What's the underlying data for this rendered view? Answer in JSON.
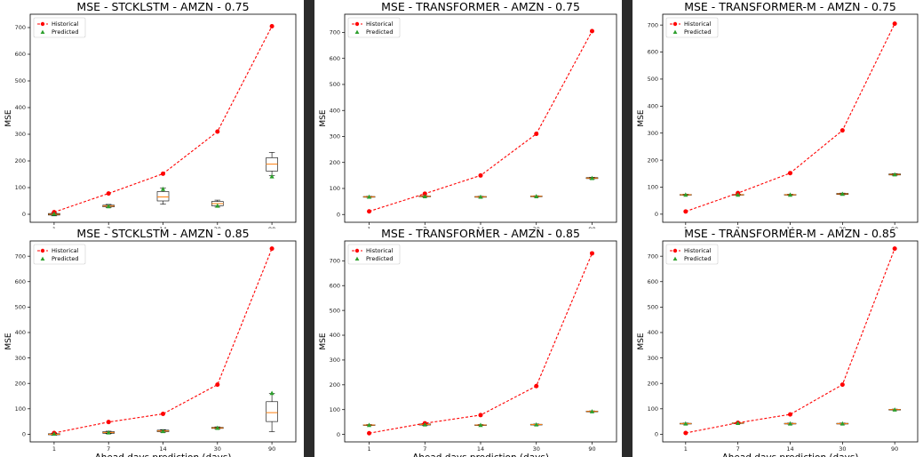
{
  "chart_data": [
    {
      "type": "line",
      "title": "MSE - STCKLSTM - AMZN - 0.75",
      "xlabel": "",
      "ylabel": "MSE",
      "categories": [
        "1",
        "7",
        "14",
        "30",
        "90"
      ],
      "ylim": [
        -30,
        750
      ],
      "yticks": [
        0,
        100,
        200,
        300,
        400,
        500,
        600,
        700
      ],
      "legend": "top-left",
      "grid": false,
      "series": [
        {
          "name": "Historical",
          "color": "#ff0000",
          "values": [
            8,
            78,
            152,
            310,
            705
          ]
        },
        {
          "name": "Predicted",
          "color": "#2ca02c",
          "values": [
            2,
            30,
            95,
            32,
            142
          ]
        }
      ],
      "boxes": [
        {
          "q1": -3,
          "median": 0,
          "q3": 3,
          "whislo": -6,
          "whishi": 6
        },
        {
          "q1": 28,
          "median": 31,
          "q3": 34,
          "whislo": 25,
          "whishi": 37
        },
        {
          "q1": 50,
          "median": 65,
          "q3": 85,
          "whislo": 38,
          "whishi": 98
        },
        {
          "q1": 32,
          "median": 40,
          "q3": 48,
          "whislo": 27,
          "whishi": 53
        },
        {
          "q1": 162,
          "median": 188,
          "q3": 212,
          "whislo": 145,
          "whishi": 232
        }
      ]
    },
    {
      "type": "line",
      "title": "MSE - TRANSFORMER - AMZN - 0.75",
      "xlabel": "",
      "ylabel": "MSE",
      "categories": [
        "1",
        "7",
        "14",
        "30",
        "90"
      ],
      "ylim": [
        -30,
        770
      ],
      "yticks": [
        0,
        100,
        200,
        300,
        400,
        500,
        600,
        700
      ],
      "legend": "top-left",
      "grid": false,
      "series": [
        {
          "name": "Historical",
          "color": "#ff0000",
          "values": [
            12,
            80,
            150,
            310,
            705
          ]
        },
        {
          "name": "Predicted",
          "color": "#2ca02c",
          "values": [
            68,
            70,
            68,
            70,
            140
          ]
        }
      ],
      "boxes": [
        {
          "q1": 67,
          "median": 68,
          "q3": 69,
          "whislo": 66,
          "whishi": 70
        },
        {
          "q1": 69,
          "median": 70,
          "q3": 71,
          "whislo": 68,
          "whishi": 72
        },
        {
          "q1": 67,
          "median": 68,
          "q3": 69,
          "whislo": 66,
          "whishi": 70
        },
        {
          "q1": 69,
          "median": 70,
          "q3": 71,
          "whislo": 68,
          "whishi": 72
        },
        {
          "q1": 138,
          "median": 140,
          "q3": 142,
          "whislo": 137,
          "whishi": 143
        }
      ]
    },
    {
      "type": "line",
      "title": "MSE - TRANSFORMER-M - AMZN - 0.75",
      "xlabel": "",
      "ylabel": "MSE",
      "categories": [
        "1",
        "7",
        "14",
        "30",
        "90"
      ],
      "ylim": [
        -30,
        740
      ],
      "yticks": [
        0,
        100,
        200,
        300,
        400,
        500,
        600,
        700
      ],
      "legend": "top-left",
      "grid": false,
      "series": [
        {
          "name": "Historical",
          "color": "#ff0000",
          "values": [
            10,
            78,
            152,
            310,
            705
          ]
        },
        {
          "name": "Predicted",
          "color": "#2ca02c",
          "values": [
            72,
            72,
            72,
            75,
            147
          ]
        }
      ],
      "boxes": [
        {
          "q1": 71,
          "median": 72,
          "q3": 73,
          "whislo": 70,
          "whishi": 74
        },
        {
          "q1": 71,
          "median": 72,
          "q3": 73,
          "whislo": 70,
          "whishi": 74
        },
        {
          "q1": 71,
          "median": 72,
          "q3": 73,
          "whislo": 70,
          "whishi": 74
        },
        {
          "q1": 73,
          "median": 75,
          "q3": 77,
          "whislo": 72,
          "whishi": 78
        },
        {
          "q1": 145,
          "median": 147,
          "q3": 149,
          "whislo": 144,
          "whishi": 150
        }
      ]
    },
    {
      "type": "line",
      "title": "MSE - STCKLSTM - AMZN - 0.85",
      "xlabel": "Ahead days prediction (days)",
      "ylabel": "MSE",
      "categories": [
        "1",
        "7",
        "14",
        "30",
        "90"
      ],
      "ylim": [
        -30,
        760
      ],
      "yticks": [
        0,
        100,
        200,
        300,
        400,
        500,
        600,
        700
      ],
      "legend": "top-left",
      "grid": false,
      "series": [
        {
          "name": "Historical",
          "color": "#ff0000",
          "values": [
            5,
            48,
            80,
            195,
            730
          ]
        },
        {
          "name": "Predicted",
          "color": "#2ca02c",
          "values": [
            2,
            7,
            12,
            25,
            162
          ]
        }
      ],
      "boxes": [
        {
          "q1": -2,
          "median": 0,
          "q3": 2,
          "whislo": -4,
          "whishi": 4
        },
        {
          "q1": 4,
          "median": 7,
          "q3": 10,
          "whislo": 2,
          "whishi": 12
        },
        {
          "q1": 10,
          "median": 13,
          "q3": 16,
          "whislo": 8,
          "whishi": 18
        },
        {
          "q1": 23,
          "median": 25,
          "q3": 27,
          "whislo": 21,
          "whishi": 29
        },
        {
          "q1": 50,
          "median": 85,
          "q3": 128,
          "whislo": 10,
          "whishi": 160
        }
      ]
    },
    {
      "type": "line",
      "title": "MSE - TRANSFORMER - AMZN - 0.85",
      "xlabel": "Ahead days prediction (days)",
      "ylabel": "MSE",
      "categories": [
        "1",
        "7",
        "14",
        "30",
        "90"
      ],
      "ylim": [
        -30,
        780
      ],
      "yticks": [
        0,
        100,
        200,
        300,
        400,
        500,
        600,
        700
      ],
      "legend": "top-left",
      "grid": false,
      "series": [
        {
          "name": "Historical",
          "color": "#ff0000",
          "values": [
            5,
            45,
            78,
            195,
            730
          ]
        },
        {
          "name": "Predicted",
          "color": "#2ca02c",
          "values": [
            38,
            40,
            38,
            40,
            93
          ]
        }
      ],
      "boxes": [
        {
          "q1": 37,
          "median": 38,
          "q3": 39,
          "whislo": 36,
          "whishi": 40
        },
        {
          "q1": 38,
          "median": 40,
          "q3": 42,
          "whislo": 37,
          "whishi": 43
        },
        {
          "q1": 37,
          "median": 38,
          "q3": 39,
          "whislo": 36,
          "whishi": 40
        },
        {
          "q1": 39,
          "median": 40,
          "q3": 41,
          "whislo": 38,
          "whishi": 42
        },
        {
          "q1": 92,
          "median": 93,
          "q3": 94,
          "whislo": 91,
          "whishi": 95
        }
      ]
    },
    {
      "type": "line",
      "title": "MSE - TRANSFORMER-M - AMZN - 0.85",
      "xlabel": "Ahead days prediction (days)",
      "ylabel": "MSE",
      "categories": [
        "1",
        "7",
        "14",
        "30",
        "90"
      ],
      "ylim": [
        -30,
        760
      ],
      "yticks": [
        0,
        100,
        200,
        300,
        400,
        500,
        600,
        700
      ],
      "legend": "top-left",
      "grid": false,
      "series": [
        {
          "name": "Historical",
          "color": "#ff0000",
          "values": [
            5,
            45,
            78,
            195,
            730
          ]
        },
        {
          "name": "Predicted",
          "color": "#2ca02c",
          "values": [
            42,
            44,
            42,
            42,
            97
          ]
        }
      ],
      "boxes": [
        {
          "q1": 41,
          "median": 42,
          "q3": 43,
          "whislo": 40,
          "whishi": 44
        },
        {
          "q1": 43,
          "median": 44,
          "q3": 45,
          "whislo": 42,
          "whishi": 46
        },
        {
          "q1": 41,
          "median": 42,
          "q3": 43,
          "whislo": 40,
          "whishi": 44
        },
        {
          "q1": 41,
          "median": 42,
          "q3": 43,
          "whislo": 40,
          "whishi": 44
        },
        {
          "q1": 96,
          "median": 97,
          "q3": 98,
          "whislo": 95,
          "whishi": 99
        }
      ]
    }
  ]
}
